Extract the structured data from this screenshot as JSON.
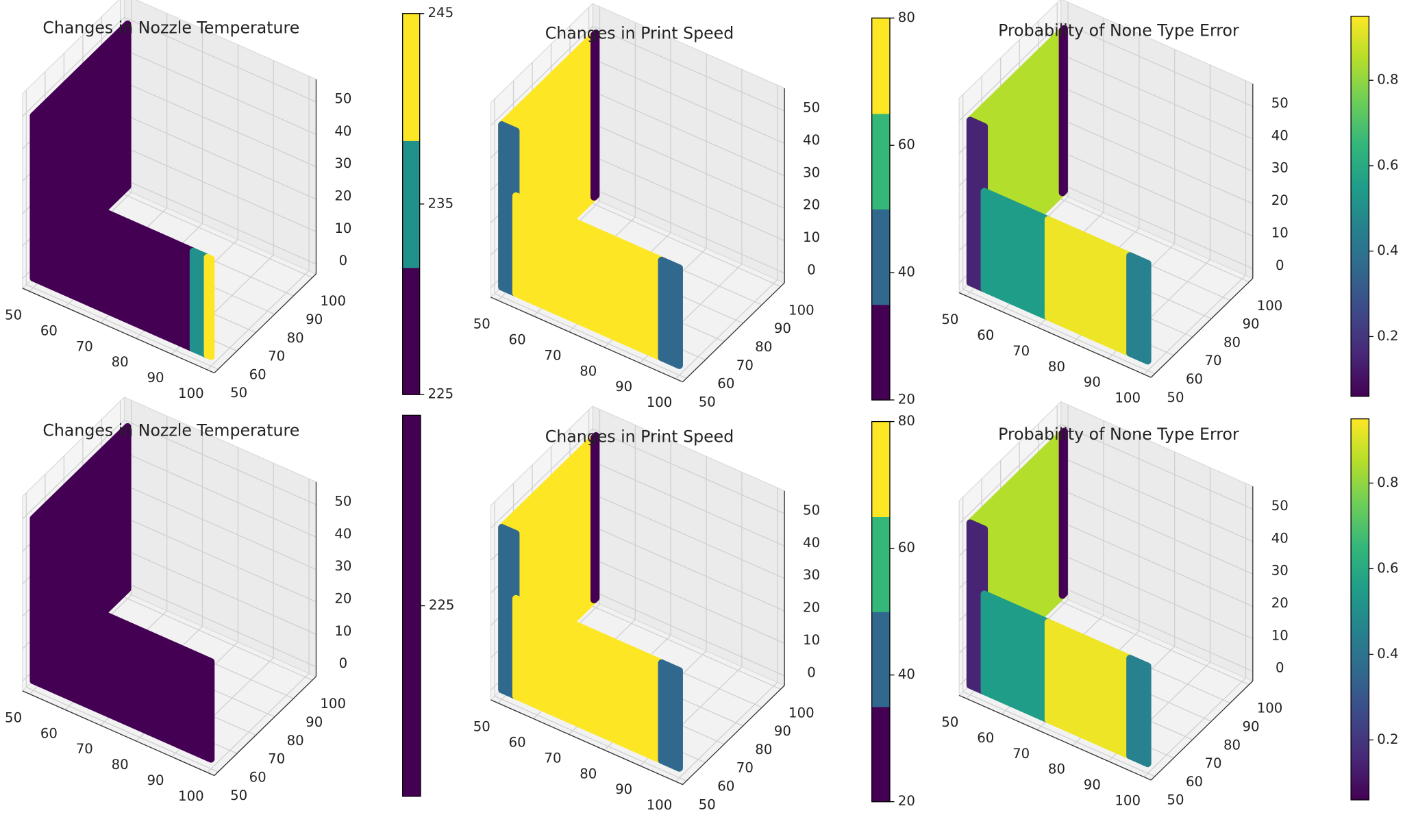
{
  "chart_data": [
    {
      "type": "scatter3d",
      "title": "Changes in Nozzle Temperature",
      "xlim": [
        48,
        102
      ],
      "ylim": [
        48,
        102
      ],
      "zlim": [
        -3,
        57
      ],
      "xticks": [
        50,
        60,
        70,
        80,
        90,
        100
      ],
      "yticks": [
        50,
        60,
        70,
        80,
        90,
        100
      ],
      "zticks": [
        0,
        10,
        20,
        30,
        40,
        50
      ],
      "colorbar": {
        "clim": [
          225,
          245
        ],
        "ticks": [
          225,
          235,
          245
        ],
        "colors": [
          "#440154",
          "#21918c",
          "#fde725"
        ]
      },
      "surfaces": [
        {
          "x": [
            50,
            50
          ],
          "y": [
            50,
            100
          ],
          "z": [
            0,
            50
          ],
          "value": 225
        },
        {
          "x": [
            50,
            95
          ],
          "y": [
            50,
            50
          ],
          "z": [
            0,
            30
          ],
          "value": 225
        },
        {
          "x": [
            95,
            99
          ],
          "y": [
            50,
            50
          ],
          "z": [
            0,
            30
          ],
          "value": 235
        },
        {
          "x": [
            99,
            100
          ],
          "y": [
            50,
            50
          ],
          "z": [
            0,
            30
          ],
          "value": 245
        }
      ]
    },
    {
      "type": "scatter3d",
      "title": "Changes in Print Speed",
      "xlim": [
        48,
        102
      ],
      "ylim": [
        48,
        102
      ],
      "zlim": [
        -3,
        57
      ],
      "xticks": [
        50,
        60,
        70,
        80,
        90,
        100
      ],
      "yticks": [
        50,
        60,
        70,
        80,
        90,
        100
      ],
      "zticks": [
        0,
        10,
        20,
        30,
        40,
        50
      ],
      "colorbar": {
        "clim": [
          20,
          80
        ],
        "ticks": [
          20,
          40,
          60,
          80
        ],
        "colors": [
          "#440154",
          "#31688e",
          "#35b779",
          "#fde725"
        ]
      },
      "surfaces": [
        {
          "x": [
            50,
            50
          ],
          "y": [
            50,
            99
          ],
          "z": [
            0,
            50
          ],
          "value": 80
        },
        {
          "x": [
            50,
            50
          ],
          "y": [
            99,
            100
          ],
          "z": [
            0,
            50
          ],
          "value": 20
        },
        {
          "x": [
            50,
            54
          ],
          "y": [
            50,
            50
          ],
          "z": [
            0,
            50
          ],
          "value": 40
        },
        {
          "x": [
            54,
            95
          ],
          "y": [
            50,
            50
          ],
          "z": [
            0,
            30
          ],
          "value": 80
        },
        {
          "x": [
            95,
            100
          ],
          "y": [
            50,
            50
          ],
          "z": [
            0,
            30
          ],
          "value": 40
        }
      ]
    },
    {
      "type": "scatter3d",
      "title": "Probability of None Type Error",
      "xlim": [
        48,
        102
      ],
      "ylim": [
        48,
        102
      ],
      "zlim": [
        -3,
        57
      ],
      "xticks": [
        50,
        60,
        70,
        80,
        90,
        100
      ],
      "yticks": [
        50,
        60,
        70,
        80,
        90,
        100
      ],
      "zticks": [
        0,
        10,
        20,
        30,
        40,
        50
      ],
      "colorbar": {
        "clim": [
          0.06,
          0.95
        ],
        "ticks": [
          0.2,
          0.4,
          0.6,
          0.8
        ],
        "colormap": "viridis"
      },
      "surfaces": [
        {
          "x": [
            50,
            50
          ],
          "y": [
            50,
            99
          ],
          "z": [
            0,
            50
          ],
          "value": 0.85
        },
        {
          "x": [
            50,
            50
          ],
          "y": [
            99,
            100
          ],
          "z": [
            0,
            50
          ],
          "value": 0.06
        },
        {
          "x": [
            50,
            54
          ],
          "y": [
            50,
            50
          ],
          "z": [
            0,
            50
          ],
          "value": 0.15
        },
        {
          "x": [
            54,
            72
          ],
          "y": [
            50,
            50
          ],
          "z": [
            0,
            30
          ],
          "value": 0.55
        },
        {
          "x": [
            72,
            95
          ],
          "y": [
            50,
            50
          ],
          "z": [
            0,
            30
          ],
          "value": 0.93
        },
        {
          "x": [
            95,
            100
          ],
          "y": [
            50,
            50
          ],
          "z": [
            0,
            30
          ],
          "value": 0.45
        }
      ]
    },
    {
      "type": "scatter3d",
      "title": "Changes in Nozzle Temperature",
      "xlim": [
        48,
        102
      ],
      "ylim": [
        48,
        102
      ],
      "zlim": [
        -3,
        57
      ],
      "xticks": [
        50,
        60,
        70,
        80,
        90,
        100
      ],
      "yticks": [
        50,
        60,
        70,
        80,
        90,
        100
      ],
      "zticks": [
        0,
        10,
        20,
        30,
        40,
        50
      ],
      "colorbar": {
        "clim": [
          224.5,
          225.5
        ],
        "ticks": [
          225
        ],
        "colors": [
          "#440154"
        ]
      },
      "surfaces": [
        {
          "x": [
            50,
            50
          ],
          "y": [
            50,
            100
          ],
          "z": [
            0,
            50
          ],
          "value": 225
        },
        {
          "x": [
            50,
            100
          ],
          "y": [
            50,
            50
          ],
          "z": [
            0,
            30
          ],
          "value": 225
        }
      ]
    },
    {
      "type": "scatter3d",
      "title": "Changes in Print Speed",
      "xlim": [
        48,
        102
      ],
      "ylim": [
        48,
        102
      ],
      "zlim": [
        -3,
        57
      ],
      "xticks": [
        50,
        60,
        70,
        80,
        90,
        100
      ],
      "yticks": [
        50,
        60,
        70,
        80,
        90,
        100
      ],
      "zticks": [
        0,
        10,
        20,
        30,
        40,
        50
      ],
      "colorbar": {
        "clim": [
          20,
          80
        ],
        "ticks": [
          20,
          40,
          60,
          80
        ],
        "colors": [
          "#440154",
          "#31688e",
          "#35b779",
          "#fde725"
        ]
      },
      "surfaces": [
        {
          "x": [
            50,
            50
          ],
          "y": [
            50,
            99
          ],
          "z": [
            0,
            50
          ],
          "value": 80
        },
        {
          "x": [
            50,
            50
          ],
          "y": [
            99,
            100
          ],
          "z": [
            0,
            50
          ],
          "value": 20
        },
        {
          "x": [
            50,
            54
          ],
          "y": [
            50,
            50
          ],
          "z": [
            0,
            50
          ],
          "value": 40
        },
        {
          "x": [
            54,
            95
          ],
          "y": [
            50,
            50
          ],
          "z": [
            0,
            30
          ],
          "value": 80
        },
        {
          "x": [
            95,
            100
          ],
          "y": [
            50,
            50
          ],
          "z": [
            0,
            30
          ],
          "value": 40
        }
      ]
    },
    {
      "type": "scatter3d",
      "title": "Probability of None Type Error",
      "xlim": [
        48,
        102
      ],
      "ylim": [
        48,
        102
      ],
      "zlim": [
        -3,
        57
      ],
      "xticks": [
        50,
        60,
        70,
        80,
        90,
        100
      ],
      "yticks": [
        50,
        60,
        70,
        80,
        90,
        100
      ],
      "zticks": [
        0,
        10,
        20,
        30,
        40,
        50
      ],
      "colorbar": {
        "clim": [
          0.06,
          0.95
        ],
        "ticks": [
          0.2,
          0.4,
          0.6,
          0.8
        ],
        "colormap": "viridis"
      },
      "surfaces": [
        {
          "x": [
            50,
            50
          ],
          "y": [
            50,
            99
          ],
          "z": [
            0,
            50
          ],
          "value": 0.85
        },
        {
          "x": [
            50,
            50
          ],
          "y": [
            99,
            100
          ],
          "z": [
            0,
            50
          ],
          "value": 0.06
        },
        {
          "x": [
            50,
            54
          ],
          "y": [
            50,
            50
          ],
          "z": [
            0,
            50
          ],
          "value": 0.15
        },
        {
          "x": [
            54,
            72
          ],
          "y": [
            50,
            50
          ],
          "z": [
            0,
            30
          ],
          "value": 0.55
        },
        {
          "x": [
            72,
            95
          ],
          "y": [
            50,
            50
          ],
          "z": [
            0,
            30
          ],
          "value": 0.93
        },
        {
          "x": [
            95,
            100
          ],
          "y": [
            50,
            50
          ],
          "z": [
            0,
            30
          ],
          "value": 0.45
        }
      ]
    }
  ]
}
